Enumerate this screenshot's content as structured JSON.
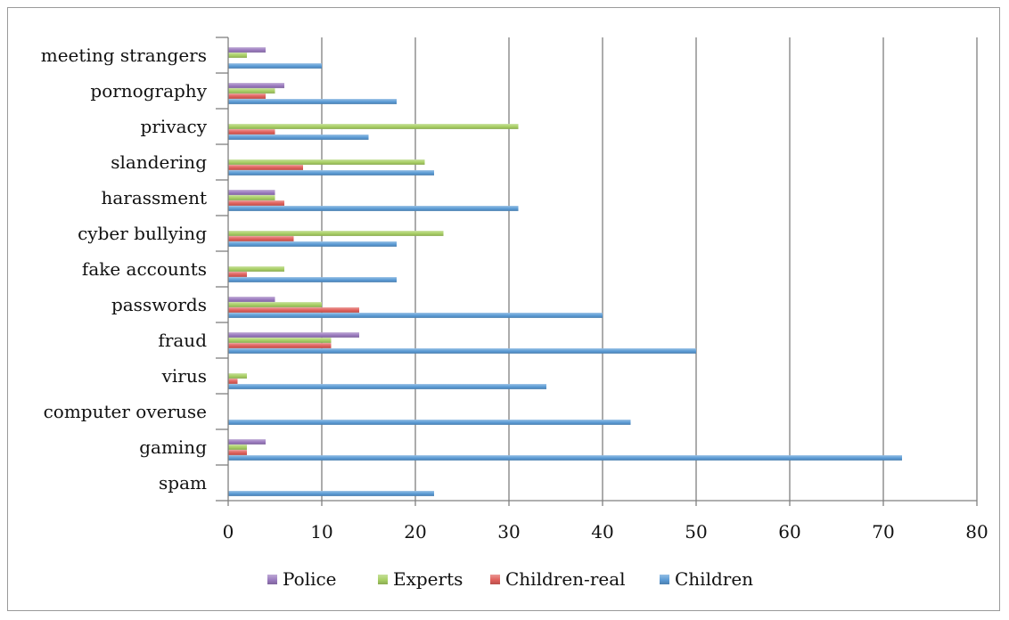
{
  "chart_data": {
    "type": "bar",
    "orientation": "horizontal",
    "title": "",
    "xlabel": "",
    "ylabel": "",
    "xlim": [
      0,
      80
    ],
    "xticks": [
      0,
      10,
      20,
      30,
      40,
      50,
      60,
      70,
      80
    ],
    "grid": "vertical",
    "legend_position": "bottom",
    "categories": [
      "meeting strangers",
      "pornography",
      "privacy",
      "slandering",
      "harassment",
      "cyber bullying",
      "fake accounts",
      "passwords",
      "fraud",
      "virus",
      "computer overuse",
      "gaming",
      "spam"
    ],
    "series": [
      {
        "name": "Police",
        "color": "#9b7bbf",
        "values": [
          4,
          6,
          0,
          0,
          5,
          0,
          0,
          5,
          14,
          0,
          0,
          4,
          0
        ]
      },
      {
        "name": "Experts",
        "color": "#a8cf64",
        "values": [
          2,
          5,
          31,
          21,
          5,
          23,
          6,
          10,
          11,
          2,
          0,
          2,
          0
        ]
      },
      {
        "name": "Children-real",
        "color": "#e0605c",
        "values": [
          0,
          4,
          5,
          8,
          6,
          7,
          2,
          14,
          11,
          1,
          0,
          2,
          0
        ]
      },
      {
        "name": "Children",
        "color": "#5b9bd5",
        "values": [
          10,
          18,
          15,
          22,
          31,
          18,
          18,
          40,
          50,
          34,
          43,
          72,
          22
        ]
      }
    ]
  }
}
